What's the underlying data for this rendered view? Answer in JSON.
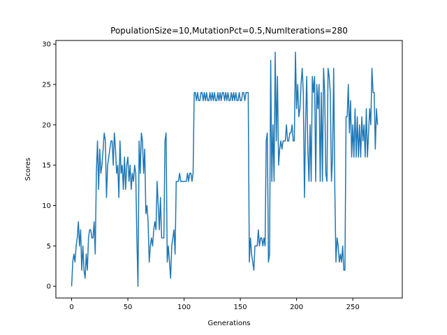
{
  "chart_data": {
    "type": "line",
    "title": "PopulationSize=10,MutationPct=0.5,NumIterations=280",
    "xlabel": "Generations",
    "ylabel": "Scores",
    "xlim": [
      -14,
      294
    ],
    "ylim": [
      -1.45,
      30.45
    ],
    "xticks": [
      0,
      50,
      100,
      150,
      200,
      250
    ],
    "yticks": [
      0,
      5,
      10,
      15,
      20,
      25,
      30
    ],
    "grid": false,
    "series": [
      {
        "color": "#1f77b4",
        "values": [
          0,
          3,
          4,
          3,
          5,
          6,
          8,
          5,
          7,
          2,
          5,
          2,
          1,
          4,
          2,
          6,
          7,
          7,
          6,
          6,
          8,
          4,
          14,
          18,
          12,
          17,
          14,
          15,
          17,
          19,
          18,
          11,
          15,
          16,
          17,
          18,
          18,
          15,
          19,
          17,
          14,
          15,
          11,
          18,
          14,
          15,
          12,
          16,
          12,
          15,
          16,
          13,
          15,
          12,
          14,
          13,
          15,
          14,
          6,
          0,
          18,
          14,
          19,
          18,
          14,
          17,
          9,
          10,
          8,
          3,
          5,
          6,
          5,
          7,
          8,
          7,
          13,
          10,
          7,
          11,
          6,
          6,
          6,
          18,
          19,
          3,
          5,
          3,
          1,
          5,
          6,
          7,
          4,
          13,
          13,
          13,
          14,
          13,
          13,
          13,
          13,
          13,
          13,
          14,
          13,
          14,
          14,
          13,
          14,
          24,
          24,
          23,
          24,
          23,
          23,
          24,
          24,
          23,
          24,
          23,
          24,
          23,
          23,
          24,
          23,
          24,
          23,
          24,
          23,
          23,
          24,
          23,
          24,
          23,
          24,
          24,
          23,
          24,
          23,
          24,
          23,
          23,
          24,
          23,
          24,
          23,
          24,
          23,
          23,
          24,
          23,
          23,
          24,
          24,
          23,
          24,
          24,
          24,
          3,
          6,
          4,
          3,
          2,
          5,
          5,
          5,
          7,
          5,
          6,
          6,
          5,
          6,
          5,
          18,
          19,
          3,
          4,
          28,
          13,
          20,
          13,
          29,
          18,
          26,
          15,
          17,
          18,
          17,
          18,
          18,
          18,
          20,
          18,
          18,
          19,
          19,
          20,
          18,
          18,
          29,
          22,
          25,
          21,
          22,
          25,
          27,
          24,
          11,
          20,
          26,
          17,
          13,
          20,
          13,
          26,
          24,
          26,
          13,
          25,
          22,
          25,
          13,
          24,
          13,
          27,
          24,
          14,
          13,
          27,
          26,
          24,
          13,
          16,
          27,
          12,
          3,
          6,
          5,
          3,
          4,
          3,
          5,
          2,
          2,
          21,
          21,
          25,
          19,
          23,
          16,
          20,
          16,
          22,
          16,
          21,
          16,
          20,
          16,
          21,
          18,
          20,
          16,
          22,
          16,
          19,
          22,
          20,
          27,
          24,
          24,
          17,
          22,
          20
        ]
      }
    ]
  }
}
